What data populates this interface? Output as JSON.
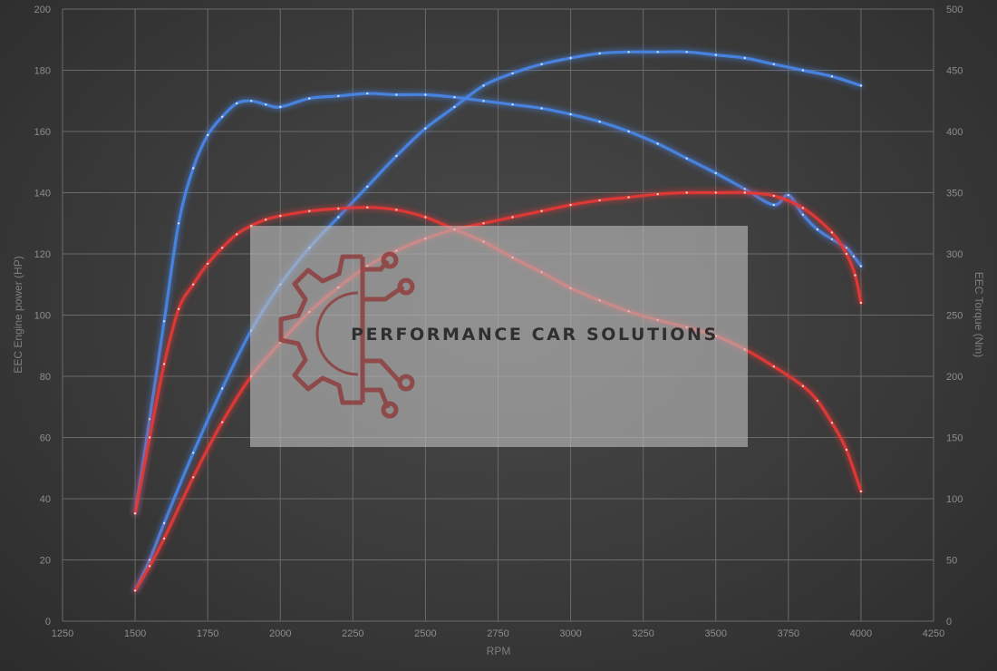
{
  "chart_data": {
    "type": "line",
    "xlabel": "RPM",
    "ylabel_left": "EEC Engine power (HP)",
    "ylabel_right": "EEC Torque (Nm)",
    "xlim": [
      1250,
      4250
    ],
    "xticks": [
      1250,
      1500,
      1750,
      2000,
      2250,
      2500,
      2750,
      3000,
      3250,
      3500,
      3750,
      4000,
      4250
    ],
    "ylim_left": [
      0,
      200
    ],
    "yticks_left": [
      0,
      20,
      40,
      60,
      80,
      100,
      120,
      140,
      160,
      180,
      200
    ],
    "ylim_right": [
      0,
      500
    ],
    "yticks_right": [
      0,
      50,
      100,
      150,
      200,
      250,
      300,
      350,
      400,
      450,
      500
    ],
    "grid": true,
    "series": [
      {
        "axis": "left",
        "color": "#4a86e8",
        "x": [
          1500,
          1550,
          1600,
          1700,
          1800,
          1900,
          2000,
          2100,
          2200,
          2300,
          2400,
          2500,
          2600,
          2700,
          2800,
          2900,
          3000,
          3100,
          3200,
          3300,
          3400,
          3500,
          3600,
          3700,
          3800,
          3900,
          4000
        ],
        "y": [
          10,
          20,
          32,
          55,
          76,
          95,
          110,
          122,
          132,
          142,
          152,
          161,
          168,
          175,
          179,
          182,
          184,
          185.5,
          186,
          186,
          186,
          185,
          184,
          182,
          180,
          178,
          175
        ]
      },
      {
        "axis": "right",
        "color": "#4a86e8",
        "x": [
          1500,
          1550,
          1600,
          1650,
          1700,
          1750,
          1800,
          1850,
          1900,
          1950,
          2000,
          2100,
          2200,
          2300,
          2400,
          2500,
          2600,
          2700,
          2800,
          2900,
          3000,
          3100,
          3200,
          3300,
          3400,
          3500,
          3600,
          3700,
          3750,
          3800,
          3850,
          3900,
          3950,
          3975,
          4000
        ],
        "y": [
          88,
          165,
          245,
          325,
          370,
          397,
          412,
          423,
          425,
          422,
          420,
          427,
          429,
          431,
          430,
          430,
          428,
          425,
          422,
          419,
          414,
          408,
          400,
          390,
          378,
          366,
          353,
          340,
          348,
          332,
          320,
          312,
          305,
          298,
          290
        ]
      },
      {
        "axis": "left",
        "color": "#e53935",
        "x": [
          1500,
          1550,
          1600,
          1700,
          1800,
          1900,
          2000,
          2100,
          2200,
          2300,
          2400,
          2500,
          2600,
          2700,
          2800,
          2900,
          3000,
          3100,
          3200,
          3300,
          3400,
          3500,
          3600,
          3700,
          3800,
          3900,
          3950,
          3980,
          4000
        ],
        "y": [
          10,
          18,
          27,
          47,
          65,
          80,
          91,
          101,
          109,
          116,
          121,
          125,
          128,
          130,
          132,
          134,
          136,
          137.5,
          138.5,
          139.5,
          140,
          140,
          140,
          139,
          135,
          127,
          120,
          113,
          104
        ]
      },
      {
        "axis": "right",
        "color": "#e53935",
        "x": [
          1500,
          1550,
          1600,
          1650,
          1700,
          1750,
          1800,
          1850,
          1900,
          1950,
          2000,
          2100,
          2200,
          2300,
          2400,
          2500,
          2600,
          2700,
          2800,
          2900,
          3000,
          3100,
          3200,
          3300,
          3400,
          3500,
          3600,
          3700,
          3800,
          3850,
          3900,
          3950,
          4000
        ],
        "y": [
          88,
          150,
          210,
          255,
          275,
          292,
          305,
          316,
          323,
          328,
          331,
          335,
          337,
          338,
          336,
          330,
          320,
          310,
          297,
          285,
          272,
          262,
          253,
          246,
          240,
          233,
          222,
          208,
          192,
          180,
          162,
          140,
          106
        ]
      }
    ],
    "watermark": {
      "text": "PERFORMANCE CAR SOLUTIONS",
      "logo_icon": "gear-circuit-logo"
    }
  }
}
